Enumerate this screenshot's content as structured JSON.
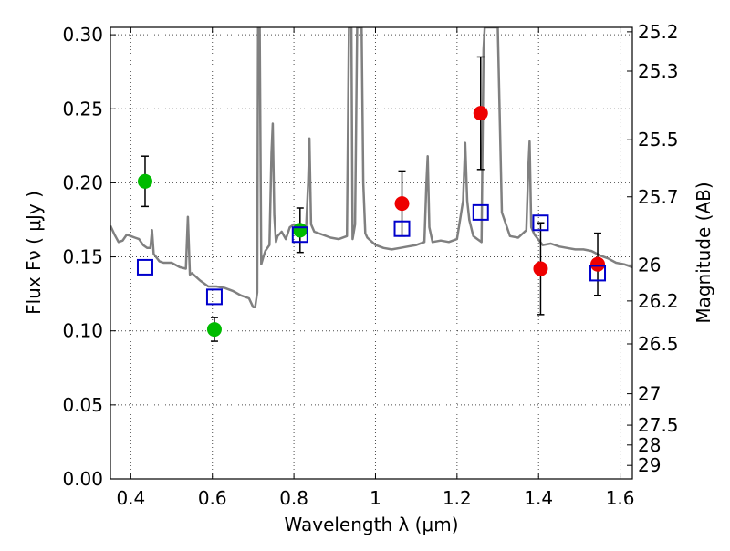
{
  "chart_data": {
    "type": "scatter",
    "title": "",
    "xlabel": "Wavelength  λ (μm)",
    "ylabel": "Flux  Fν  ( μJy )",
    "y2label": "Magnitude (AB)",
    "xlim": [
      0.35,
      1.63
    ],
    "ylim": [
      0.0,
      0.305
    ],
    "grid": true,
    "x_ticks": [
      0.4,
      0.6,
      0.8,
      1.0,
      1.2,
      1.4,
      1.6
    ],
    "x_tick_labels": [
      "0.4",
      "0.6",
      "0.8",
      "1",
      "1.2",
      "1.4",
      "1.6"
    ],
    "y_ticks": [
      0.0,
      0.05,
      0.1,
      0.15,
      0.2,
      0.25,
      0.3
    ],
    "y_tick_labels": [
      "0.00",
      "0.05",
      "0.10",
      "0.15",
      "0.20",
      "0.25",
      "0.30"
    ],
    "y2_ticks": [
      {
        "label": "25.2",
        "mag": 25.2
      },
      {
        "label": "25.3",
        "mag": 25.3
      },
      {
        "label": "25.5",
        "mag": 25.5
      },
      {
        "label": "25.7",
        "mag": 25.7
      },
      {
        "label": "26",
        "mag": 26.0
      },
      {
        "label": "26.2",
        "mag": 26.2
      },
      {
        "label": "26.5",
        "mag": 26.5
      },
      {
        "label": "27",
        "mag": 27.0
      },
      {
        "label": "27.5",
        "mag": 27.5
      },
      {
        "label": "28",
        "mag": 28.0
      },
      {
        "label": "29",
        "mag": 29.0
      }
    ],
    "series": [
      {
        "kind": "line",
        "color": "#808080",
        "x": [
          0.35,
          0.36,
          0.37,
          0.38,
          0.39,
          0.4,
          0.41,
          0.42,
          0.43,
          0.44,
          0.448,
          0.452,
          0.456,
          0.47,
          0.48,
          0.5,
          0.52,
          0.535,
          0.54,
          0.545,
          0.55,
          0.57,
          0.59,
          0.61,
          0.63,
          0.65,
          0.67,
          0.69,
          0.7,
          0.705,
          0.71,
          0.712,
          0.714,
          0.716,
          0.72,
          0.725,
          0.73,
          0.74,
          0.745,
          0.748,
          0.752,
          0.756,
          0.76,
          0.77,
          0.78,
          0.79,
          0.8,
          0.81,
          0.82,
          0.83,
          0.835,
          0.838,
          0.842,
          0.85,
          0.87,
          0.89,
          0.91,
          0.93,
          0.935,
          0.938,
          0.941,
          0.944,
          0.95,
          0.955,
          0.958,
          0.962,
          0.966,
          0.97,
          0.975,
          0.98,
          1.0,
          1.02,
          1.04,
          1.06,
          1.08,
          1.1,
          1.12,
          1.125,
          1.128,
          1.132,
          1.14,
          1.16,
          1.18,
          1.2,
          1.215,
          1.22,
          1.225,
          1.23,
          1.24,
          1.25,
          1.26,
          1.265,
          1.268,
          1.272,
          1.276,
          1.28,
          1.285,
          1.29,
          1.295,
          1.3,
          1.31,
          1.33,
          1.35,
          1.37,
          1.375,
          1.378,
          1.382,
          1.39,
          1.41,
          1.43,
          1.45,
          1.47,
          1.49,
          1.51,
          1.53,
          1.55,
          1.57,
          1.59,
          1.61,
          1.63
        ],
        "y": [
          0.171,
          0.165,
          0.16,
          0.161,
          0.165,
          0.164,
          0.163,
          0.162,
          0.158,
          0.156,
          0.156,
          0.168,
          0.152,
          0.147,
          0.146,
          0.146,
          0.143,
          0.142,
          0.177,
          0.138,
          0.139,
          0.134,
          0.13,
          0.13,
          0.129,
          0.127,
          0.124,
          0.122,
          0.116,
          0.116,
          0.126,
          0.305,
          0.305,
          0.305,
          0.145,
          0.15,
          0.154,
          0.158,
          0.22,
          0.24,
          0.178,
          0.16,
          0.164,
          0.167,
          0.162,
          0.17,
          0.172,
          0.17,
          0.168,
          0.17,
          0.2,
          0.23,
          0.172,
          0.167,
          0.165,
          0.163,
          0.162,
          0.164,
          0.305,
          0.305,
          0.305,
          0.162,
          0.172,
          0.305,
          0.305,
          0.305,
          0.305,
          0.2,
          0.166,
          0.163,
          0.158,
          0.156,
          0.155,
          0.156,
          0.157,
          0.158,
          0.16,
          0.2,
          0.218,
          0.17,
          0.16,
          0.161,
          0.16,
          0.162,
          0.188,
          0.227,
          0.188,
          0.175,
          0.164,
          0.162,
          0.16,
          0.29,
          0.305,
          0.305,
          0.305,
          0.305,
          0.305,
          0.305,
          0.305,
          0.305,
          0.18,
          0.164,
          0.163,
          0.168,
          0.21,
          0.228,
          0.17,
          0.165,
          0.158,
          0.159,
          0.157,
          0.156,
          0.155,
          0.155,
          0.154,
          0.151,
          0.149,
          0.146,
          0.145,
          0.143
        ]
      },
      {
        "kind": "points",
        "marker": "circle",
        "color": "#00bb00",
        "x": [
          0.435,
          0.605,
          0.815
        ],
        "y": [
          0.201,
          0.101,
          0.168
        ],
        "yerr": [
          0.017,
          0.008,
          0.015
        ]
      },
      {
        "kind": "points",
        "marker": "circle",
        "color": "#ee0000",
        "x": [
          1.065,
          1.258,
          1.405,
          1.545
        ],
        "y": [
          0.186,
          0.247,
          0.142,
          0.145
        ],
        "yerr": [
          0.022,
          0.038,
          0.031,
          0.021
        ]
      },
      {
        "kind": "points",
        "marker": "square-open",
        "color": "#0000cc",
        "x": [
          0.435,
          0.605,
          0.815,
          1.065,
          1.258,
          1.405,
          1.545
        ],
        "y": [
          0.143,
          0.123,
          0.165,
          0.169,
          0.18,
          0.173,
          0.139
        ]
      }
    ]
  }
}
